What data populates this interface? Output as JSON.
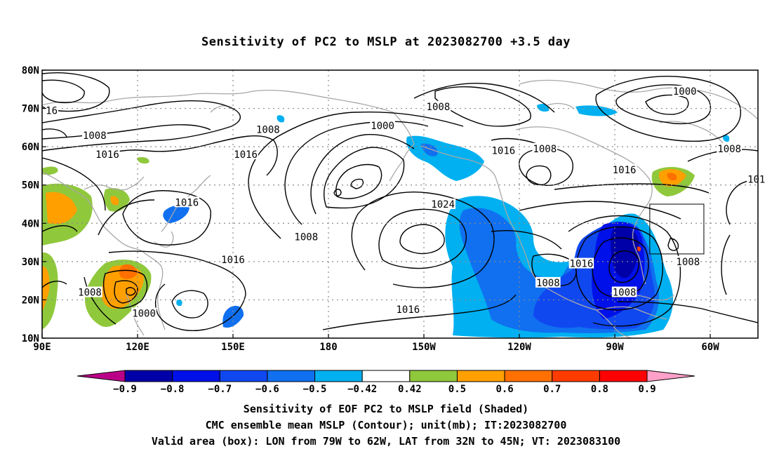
{
  "title": "Sensitivity of PC2 to MSLP at 2023082700 +3.5 day",
  "captions": [
    "Sensitivity of EOF PC2 to MSLP field (Shaded)",
    "CMC ensemble mean MSLP (Contour); unit(mb); IT:2023082700",
    "Valid area (box): LON from 79W to 62W, LAT from 32N to 45N; VT: 2023083100"
  ],
  "map": {
    "lon_range": [
      90,
      315
    ],
    "lat_range": [
      10,
      80
    ],
    "lat_labels": [
      {
        "lat": 80,
        "text": "80N"
      },
      {
        "lat": 70,
        "text": "70N"
      },
      {
        "lat": 60,
        "text": "60N"
      },
      {
        "lat": 50,
        "text": "50N"
      },
      {
        "lat": 40,
        "text": "40N"
      },
      {
        "lat": 30,
        "text": "30N"
      },
      {
        "lat": 20,
        "text": "20N"
      },
      {
        "lat": 10,
        "text": "10N"
      }
    ],
    "lon_labels": [
      {
        "lon": 90,
        "text": "90E"
      },
      {
        "lon": 120,
        "text": "120E"
      },
      {
        "lon": 150,
        "text": "150E"
      },
      {
        "lon": 180,
        "text": "180"
      },
      {
        "lon": 210,
        "text": "150W"
      },
      {
        "lon": 240,
        "text": "120W"
      },
      {
        "lon": 270,
        "text": "90W"
      },
      {
        "lon": 300,
        "text": "60W"
      }
    ],
    "grid_lats": [
      20,
      30,
      40,
      50,
      60,
      70
    ],
    "grid_lons": [
      120,
      150,
      180,
      210,
      240,
      270,
      300
    ],
    "valid_box": {
      "lon_min": 281,
      "lon_max": 298,
      "lat_min": 32,
      "lat_max": 45
    },
    "contour_labels": [
      {
        "text": "16",
        "lon": 93,
        "lat": 69.5
      },
      {
        "text": "1008",
        "lon": 106.5,
        "lat": 63
      },
      {
        "text": "1016",
        "lon": 110.5,
        "lat": 58
      },
      {
        "text": "1008",
        "lon": 161,
        "lat": 64.5
      },
      {
        "text": "1016",
        "lon": 154,
        "lat": 58
      },
      {
        "text": "1016",
        "lon": 135.5,
        "lat": 45.5
      },
      {
        "text": "1016",
        "lon": 150,
        "lat": 30.5
      },
      {
        "text": "1008",
        "lon": 105,
        "lat": 22
      },
      {
        "text": "1000",
        "lon": 122,
        "lat": 16.5
      },
      {
        "text": "1008",
        "lon": 214.5,
        "lat": 70.5
      },
      {
        "text": "1000",
        "lon": 197,
        "lat": 65.5
      },
      {
        "text": "1008",
        "lon": 173,
        "lat": 36.5
      },
      {
        "text": "1024",
        "lon": 216,
        "lat": 45
      },
      {
        "text": "1016",
        "lon": 205,
        "lat": 17.5
      },
      {
        "text": "1016",
        "lon": 235,
        "lat": 59
      },
      {
        "text": "1008",
        "lon": 248,
        "lat": 59.5
      },
      {
        "text": "1016",
        "lon": 273,
        "lat": 54
      },
      {
        "text": "1000",
        "lon": 292,
        "lat": 74.5
      },
      {
        "text": "1008",
        "lon": 306,
        "lat": 59.5
      },
      {
        "text": "101",
        "lon": 314.5,
        "lat": 51.5
      },
      {
        "text": "1016",
        "lon": 259.5,
        "lat": 29.5
      },
      {
        "text": "1008",
        "lon": 249,
        "lat": 24.5
      },
      {
        "text": "1008",
        "lon": 273,
        "lat": 22
      },
      {
        "text": "1008",
        "lon": 293,
        "lat": 30
      }
    ]
  },
  "colorbar": {
    "labels": [
      "−0.9",
      "−0.8",
      "−0.7",
      "−0.6",
      "−0.5",
      "−0.42",
      "0.42",
      "0.5",
      "0.6",
      "0.7",
      "0.8",
      "0.9"
    ],
    "colors": [
      "#bb0088",
      "#0000a8",
      "#0010e8",
      "#1048f0",
      "#1070f0",
      "#00b0f0",
      "#ffffff",
      "#90c83c",
      "#ffa000",
      "#ff7000",
      "#ff3c00",
      "#ff0000",
      "#ffa0c8"
    ]
  }
}
